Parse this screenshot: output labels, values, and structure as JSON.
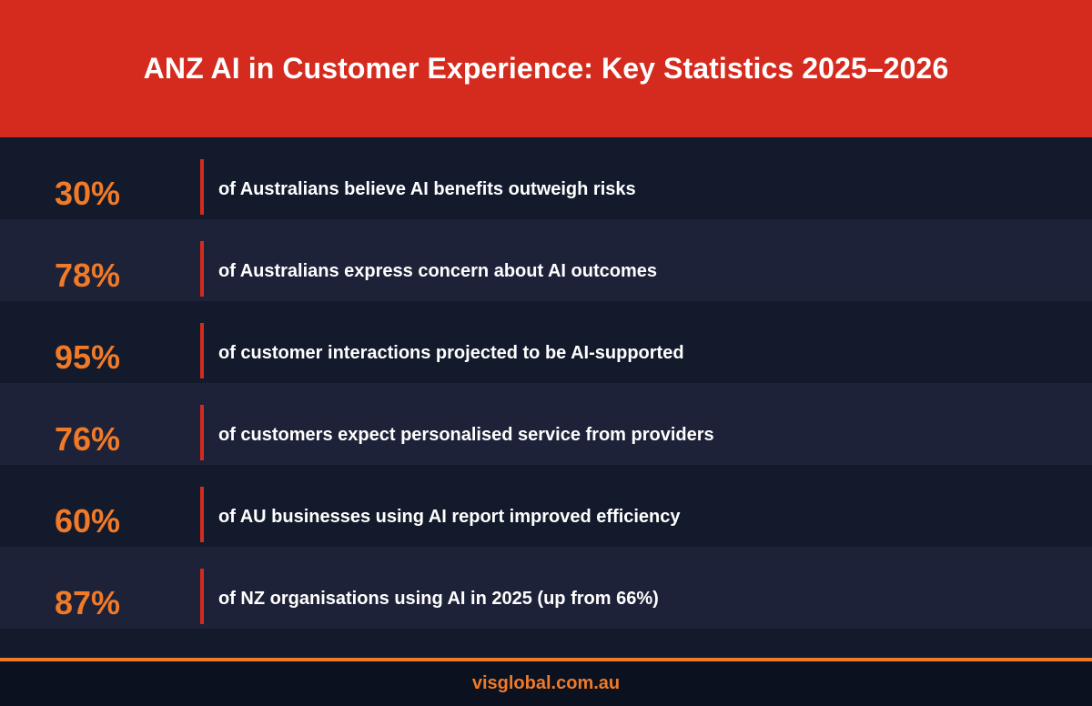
{
  "header": {
    "title": "ANZ AI in Customer Experience: Key Statistics 2025–2026"
  },
  "stats": [
    {
      "percent": "30%",
      "text": "of Australians believe AI benefits outweigh risks"
    },
    {
      "percent": "78%",
      "text": "of Australians express concern about AI outcomes"
    },
    {
      "percent": "95%",
      "text": "of customer interactions projected to be AI-supported"
    },
    {
      "percent": "76%",
      "text": "of customers expect personalised service from providers"
    },
    {
      "percent": "60%",
      "text": "of AU businesses using AI report improved efficiency"
    },
    {
      "percent": "87%",
      "text": "of NZ organisations using AI in 2025 (up from 66%)"
    }
  ],
  "footer": {
    "website": "visglobal.com.au"
  },
  "colors": {
    "header_red": "#d52b1e",
    "accent_orange": "#f07a28",
    "row_dark": "#131a2c",
    "row_light": "#1d2238",
    "footer_bg": "#0c1120"
  }
}
